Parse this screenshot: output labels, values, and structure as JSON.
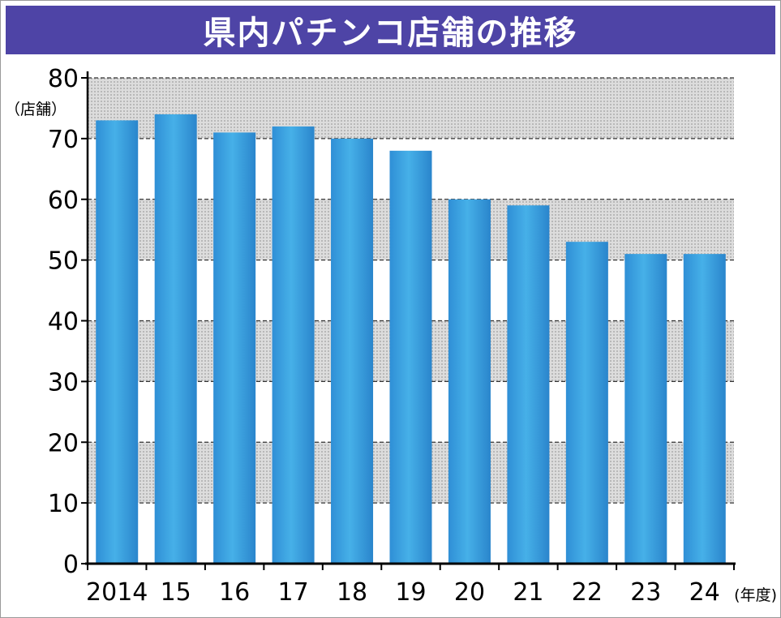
{
  "title": "県内パチンコ店舗の推移",
  "chart_data": {
    "type": "bar",
    "title": "県内パチンコ店舗の推移",
    "ylabel": "（店舗）",
    "xlabel": "(年度)",
    "categories": [
      "2014",
      "15",
      "16",
      "17",
      "18",
      "19",
      "20",
      "21",
      "22",
      "23",
      "24"
    ],
    "values": [
      73,
      74,
      71,
      72,
      70,
      68,
      60,
      59,
      53,
      51,
      51
    ],
    "ylim": [
      0,
      80
    ],
    "yticks": [
      "0",
      "10",
      "20",
      "30",
      "40",
      "50",
      "60",
      "70",
      "80"
    ],
    "grid": true,
    "colors": {
      "bar": "#3a9fdc",
      "title_bg": "#4e44a6",
      "band": "#d4d4d4"
    }
  }
}
